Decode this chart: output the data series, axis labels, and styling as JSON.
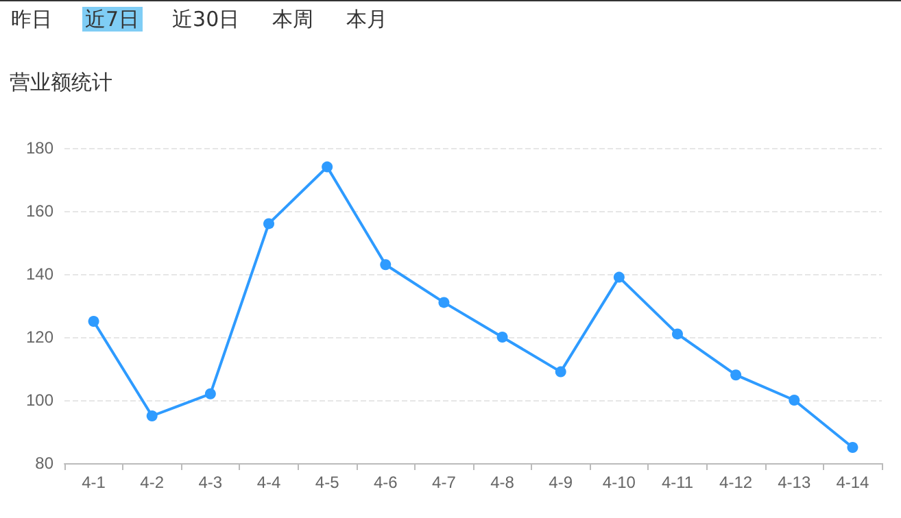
{
  "chart_data": {
    "type": "line",
    "title": "营业额统计",
    "annotations": [
      "昨日",
      "近7日",
      "近30日",
      "本周",
      "本月"
    ],
    "categories": [
      "4-1",
      "4-2",
      "4-3",
      "4-4",
      "4-5",
      "4-6",
      "4-7",
      "4-8",
      "4-9",
      "4-10",
      "4-11",
      "4-12",
      "4-13",
      "4-14"
    ],
    "series": [
      {
        "color": "#2e9bff",
        "values": [
          125,
          95,
          102,
          156,
          174,
          143,
          131,
          120,
          109,
          139,
          121,
          108,
          100,
          85
        ]
      }
    ],
    "ylim": [
      80,
      180
    ],
    "yticks": [
      80,
      100,
      120,
      140,
      160,
      180
    ],
    "grid": "y",
    "marker": "circle",
    "line_style": "solid"
  }
}
